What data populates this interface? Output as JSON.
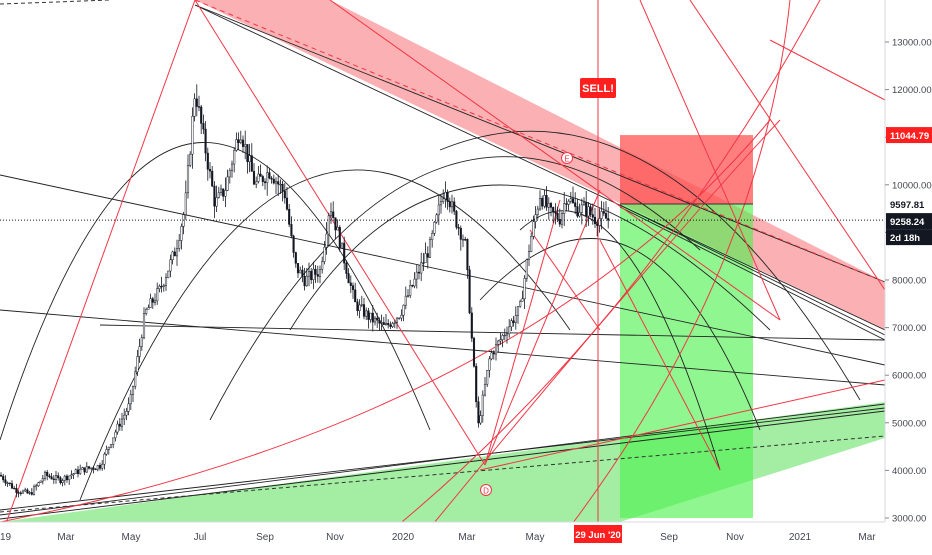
{
  "chart_data": {
    "type": "candlestick",
    "x_tick_labels": [
      "19",
      "Mar",
      "May",
      "Jul",
      "Sep",
      "Nov",
      "2020",
      "Mar",
      "May",
      "Jul",
      "Sep",
      "Nov",
      "2021",
      "Mar"
    ],
    "y_tick_labels": [
      "13000.00",
      "12000.00",
      "11000.00",
      "10000.00",
      "9000.00",
      "8000.00",
      "7000.00",
      "6000.00",
      "5000.00",
      "4000.00",
      "3000.00"
    ],
    "y_ticks": [
      13000,
      12000,
      11000,
      10000,
      9000,
      8000,
      7000,
      6000,
      5000,
      4000,
      3000
    ],
    "ylim": [
      2800,
      14000
    ],
    "price_labels": {
      "target_high": "11044.79",
      "entry": "9597.81",
      "current": "9258.24",
      "countdown": "2d 18h"
    },
    "annotations": {
      "sell": "SELL!",
      "date_marker": "29 Jun '20",
      "point_e": "E",
      "point_d": "D"
    },
    "position": {
      "side": "short",
      "entry": 9597.81,
      "stop": 11044.79,
      "target": 3000
    },
    "series_anchors": [
      [
        0,
        3900
      ],
      [
        15,
        3600
      ],
      [
        30,
        3500
      ],
      [
        45,
        3900
      ],
      [
        60,
        3800
      ],
      [
        80,
        4000
      ],
      [
        100,
        4100
      ],
      [
        115,
        4800
      ],
      [
        130,
        5400
      ],
      [
        145,
        7300
      ],
      [
        160,
        7800
      ],
      [
        175,
        8600
      ],
      [
        185,
        9500
      ],
      [
        195,
        12000
      ],
      [
        205,
        10800
      ],
      [
        215,
        9600
      ],
      [
        225,
        9900
      ],
      [
        240,
        11200
      ],
      [
        255,
        10000
      ],
      [
        270,
        10300
      ],
      [
        285,
        9800
      ],
      [
        295,
        8300
      ],
      [
        305,
        8000
      ],
      [
        320,
        8200
      ],
      [
        330,
        9600
      ],
      [
        340,
        8800
      ],
      [
        355,
        7500
      ],
      [
        370,
        7200
      ],
      [
        385,
        7000
      ],
      [
        400,
        7300
      ],
      [
        415,
        8000
      ],
      [
        430,
        8700
      ],
      [
        445,
        10000
      ],
      [
        455,
        9300
      ],
      [
        465,
        8800
      ],
      [
        478,
        4900
      ],
      [
        490,
        6400
      ],
      [
        505,
        6900
      ],
      [
        520,
        7400
      ],
      [
        530,
        8800
      ],
      [
        540,
        9800
      ],
      [
        550,
        9400
      ],
      [
        560,
        9300
      ],
      [
        567,
        9800
      ],
      [
        575,
        9500
      ],
      [
        585,
        9500
      ],
      [
        595,
        9300
      ],
      [
        605,
        9300
      ],
      [
        610,
        9250
      ]
    ],
    "zones": {
      "red_channel_color": "#f87d80",
      "green_channel_color": "#58e058",
      "profit_color": "#4cf04c",
      "loss_color": "#ff4d4d",
      "sell_label_color": "#ff1f1f",
      "current_label_color": "#131722"
    }
  }
}
